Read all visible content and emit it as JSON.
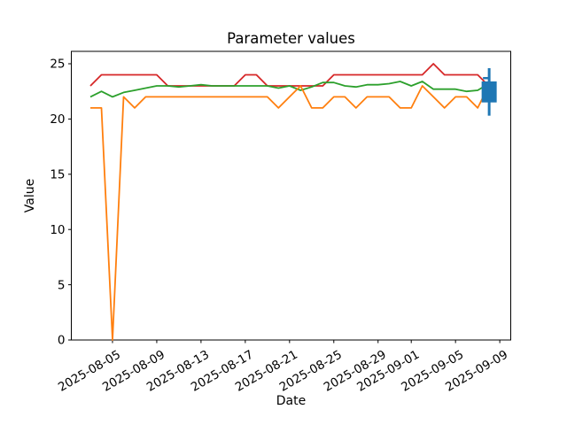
{
  "figure": {
    "title": "Parameter values",
    "xlabel": "Date",
    "ylabel": "Value"
  },
  "chart_data": {
    "type": "line",
    "title": "Parameter values",
    "xlabel": "Date",
    "ylabel": "Value",
    "grid": false,
    "legend": null,
    "ylim": [
      0,
      26.1
    ],
    "y_ticks": [
      0,
      5,
      10,
      15,
      20,
      25
    ],
    "x_ticks": [
      {
        "label": "2025-08-05",
        "day_index": 2
      },
      {
        "label": "2025-08-09",
        "day_index": 6
      },
      {
        "label": "2025-08-13",
        "day_index": 10
      },
      {
        "label": "2025-08-17",
        "day_index": 14
      },
      {
        "label": "2025-08-21",
        "day_index": 18
      },
      {
        "label": "2025-08-25",
        "day_index": 22
      },
      {
        "label": "2025-08-29",
        "day_index": 26
      },
      {
        "label": "2025-09-01",
        "day_index": 29
      },
      {
        "label": "2025-09-05",
        "day_index": 33
      },
      {
        "label": "2025-09-09",
        "day_index": 37
      }
    ],
    "x": [
      "2025-08-03",
      "2025-08-04",
      "2025-08-05",
      "2025-08-06",
      "2025-08-07",
      "2025-08-08",
      "2025-08-09",
      "2025-08-10",
      "2025-08-11",
      "2025-08-12",
      "2025-08-13",
      "2025-08-14",
      "2025-08-15",
      "2025-08-16",
      "2025-08-17",
      "2025-08-18",
      "2025-08-19",
      "2025-08-20",
      "2025-08-21",
      "2025-08-22",
      "2025-08-23",
      "2025-08-24",
      "2025-08-25",
      "2025-08-26",
      "2025-08-27",
      "2025-08-28",
      "2025-08-29",
      "2025-08-30",
      "2025-08-31",
      "2025-09-01",
      "2025-09-02",
      "2025-09-03",
      "2025-09-04",
      "2025-09-05",
      "2025-09-06",
      "2025-09-07",
      "2025-09-08"
    ],
    "series": [
      {
        "name": "red-line",
        "color": "#d62728",
        "values": [
          23,
          24,
          24,
          24,
          24,
          24,
          24,
          23,
          23,
          23,
          23,
          23,
          23,
          23,
          24,
          24,
          23,
          23,
          23,
          23,
          23,
          23,
          24,
          24,
          24,
          24,
          24,
          24,
          24,
          24,
          24,
          25,
          24,
          24,
          24,
          24,
          23
        ]
      },
      {
        "name": "green-line",
        "color": "#2ca02c",
        "values": [
          22.0,
          22.5,
          22.0,
          22.4,
          22.6,
          22.8,
          23.0,
          23.0,
          22.9,
          23.0,
          23.1,
          23.0,
          23.0,
          23.0,
          23.0,
          23.0,
          23.0,
          22.8,
          23.0,
          22.6,
          22.9,
          23.3,
          23.3,
          23.0,
          22.9,
          23.1,
          23.1,
          23.2,
          23.4,
          23.0,
          23.4,
          22.7,
          22.7,
          22.7,
          22.5,
          22.6,
          23.2
        ]
      },
      {
        "name": "orange-line",
        "color": "#ff7f0e",
        "values": [
          21,
          21,
          0,
          22,
          21,
          22,
          22,
          22,
          22,
          22,
          22,
          22,
          22,
          22,
          22,
          22,
          22,
          21,
          22,
          23,
          21,
          21,
          22,
          22,
          21,
          22,
          22,
          22,
          21,
          21,
          23,
          22,
          21,
          22,
          22,
          21,
          23
        ]
      }
    ],
    "marker": {
      "name": "candlestick-marker",
      "type": "candlestick",
      "color": "#1f77b4",
      "date": "2025-09-08",
      "day_index": 36,
      "high": 24.6,
      "low": 20.3,
      "box_top": 23.4,
      "box_bottom": 21.5,
      "open_tick": 23.7
    }
  }
}
